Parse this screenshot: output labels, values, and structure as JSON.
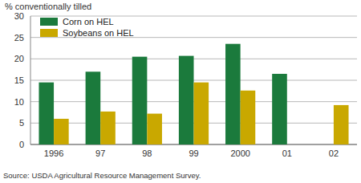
{
  "chart_data": {
    "type": "bar",
    "y_label": "% conventionally tilled",
    "source": "Source: USDA Agricultural Resource Management Survey.",
    "categories": [
      "1996",
      "97",
      "98",
      "99",
      "2000",
      "01",
      "02"
    ],
    "series": [
      {
        "name": "Corn on HEL",
        "color": "#1b7a3c",
        "values": [
          14.5,
          17,
          20.5,
          20.7,
          23.5,
          16.5,
          null
        ]
      },
      {
        "name": "Soybeans on HEL",
        "color": "#c9a800",
        "values": [
          6,
          7.7,
          7.2,
          14.5,
          12.6,
          null,
          9.2
        ]
      }
    ],
    "ylim": [
      0,
      30
    ],
    "yticks": [
      0,
      5,
      10,
      15,
      20,
      25,
      30
    ],
    "grid": true,
    "legend": "top-left"
  }
}
